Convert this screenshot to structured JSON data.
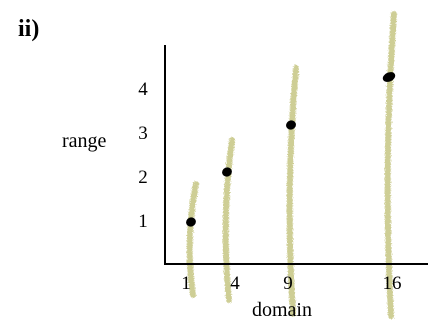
{
  "part_label": "ii)",
  "chart_data": {
    "type": "scatter",
    "title": "",
    "xlabel": "domain",
    "ylabel": "range",
    "x_ticks": [
      "1",
      "4",
      "9",
      "16"
    ],
    "y_ticks": [
      "1",
      "2",
      "3",
      "4"
    ],
    "x": [
      1,
      4,
      9,
      16
    ],
    "y": [
      1,
      2,
      3,
      4
    ],
    "xlim": [
      0,
      18
    ],
    "ylim": [
      0,
      4.5
    ],
    "grid": false,
    "legend": "none",
    "colors": {
      "axis": "#000000",
      "point": "#000000",
      "highlight_stroke": "#c9c98a"
    }
  }
}
